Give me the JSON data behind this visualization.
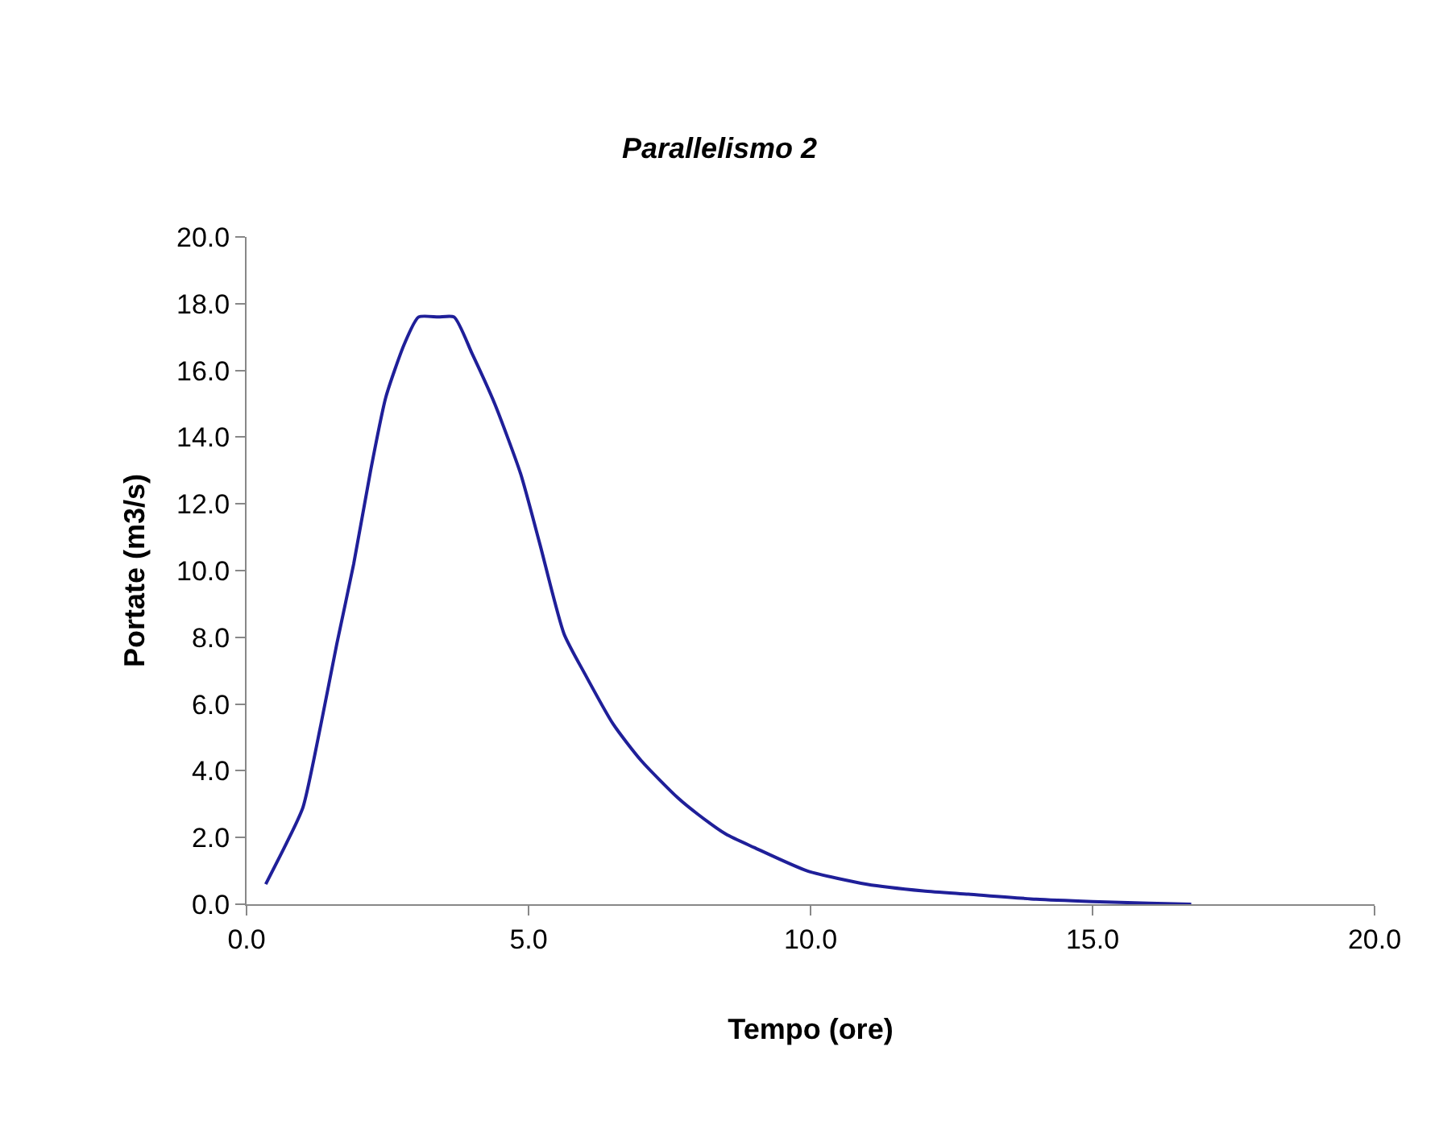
{
  "chart_data": {
    "type": "line",
    "title": "Parallelismo 2",
    "xlabel": "Tempo (ore)",
    "ylabel": "Portate (m3/s)",
    "x": [
      0.34,
      0.7,
      1.0,
      1.32,
      1.6,
      1.9,
      2.2,
      2.47,
      2.8,
      3.05,
      3.4,
      3.68,
      4.0,
      4.4,
      4.86,
      5.2,
      5.63,
      6.0,
      6.5,
      7.0,
      7.64,
      8.0,
      8.5,
      9.0,
      9.94,
      11.0,
      12.0,
      12.8,
      14.0,
      15.0,
      16.0,
      16.75
    ],
    "series": [
      {
        "color": "#1f1f99",
        "values": [
          0.6,
          1.8,
          2.9,
          5.4,
          7.8,
          10.2,
          13.0,
          15.2,
          16.8,
          17.6,
          17.6,
          17.6,
          16.5,
          15.0,
          12.9,
          10.8,
          8.1,
          6.9,
          5.4,
          4.3,
          3.2,
          2.7,
          2.1,
          1.7,
          1.0,
          0.6,
          0.4,
          0.3,
          0.15,
          0.08,
          0.03,
          0.0
        ]
      }
    ],
    "xlim": [
      0,
      20
    ],
    "xticks": [
      {
        "value": 0,
        "label": "0.0"
      },
      {
        "value": 5,
        "label": "5.0"
      },
      {
        "value": 10,
        "label": "10.0"
      },
      {
        "value": 15,
        "label": "15.0"
      },
      {
        "value": 20,
        "label": "20.0"
      }
    ],
    "ylim": [
      0,
      20
    ],
    "yticks": [
      {
        "value": 0,
        "label": "0.0"
      },
      {
        "value": 2,
        "label": "2.0"
      },
      {
        "value": 4,
        "label": "4.0"
      },
      {
        "value": 6,
        "label": "6.0"
      },
      {
        "value": 8,
        "label": "8.0"
      },
      {
        "value": 10,
        "label": "10.0"
      },
      {
        "value": 12,
        "label": "12.0"
      },
      {
        "value": 14,
        "label": "14.0"
      },
      {
        "value": 16,
        "label": "16.0"
      },
      {
        "value": 18,
        "label": "18.0"
      },
      {
        "value": 20,
        "label": "20.0"
      }
    ],
    "marker": "none",
    "line_style": "solid"
  }
}
